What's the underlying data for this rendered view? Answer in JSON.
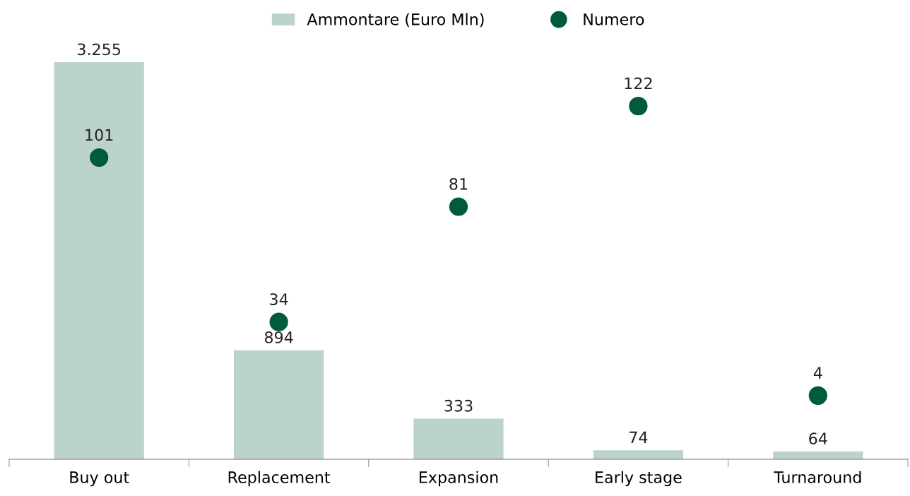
{
  "chart_data": {
    "type": "bar",
    "categories": [
      "Buy out",
      "Replacement",
      "Expansion",
      "Early stage",
      "Turnaround"
    ],
    "series": [
      {
        "name": "Ammontare (Euro Mln)",
        "color": "#bcd3c9",
        "values": [
          3255,
          894,
          333,
          74,
          64
        ],
        "value_labels": [
          "3.255",
          "894",
          "333",
          "74",
          "64"
        ]
      },
      {
        "name": "Numero",
        "type": "scatter",
        "axis": "y2",
        "color": "#005a3c",
        "marker": "circle",
        "values": [
          101,
          34,
          81,
          122,
          4
        ],
        "value_labels": [
          "101",
          "34",
          "81",
          "122",
          "4"
        ]
      }
    ],
    "tick_labels": "x",
    "grid": false,
    "legend": "top"
  }
}
